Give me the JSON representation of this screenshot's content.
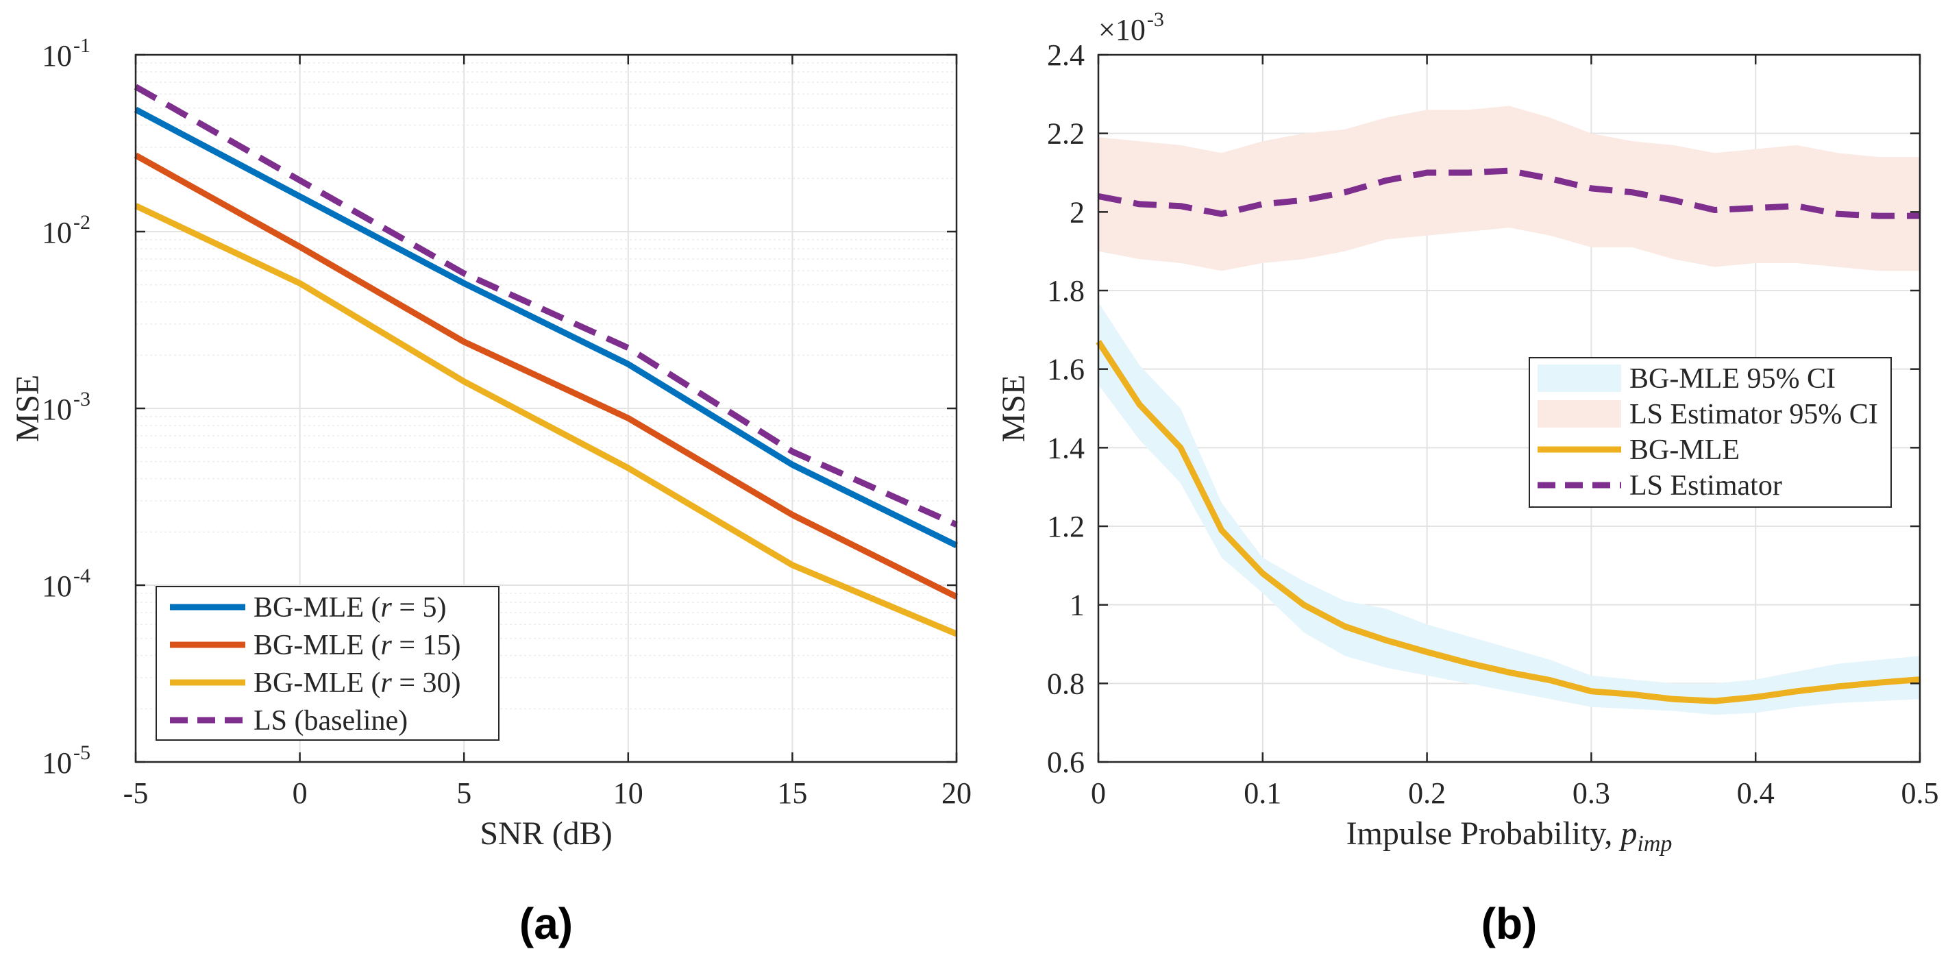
{
  "chart_data": [
    {
      "type": "line",
      "panel_label": "(a)",
      "xlabel": "SNR (dB)",
      "ylabel": "MSE",
      "x": [
        -5,
        0,
        5,
        10,
        15,
        20
      ],
      "xlim": [
        -5,
        20
      ],
      "xticks": [
        "-5",
        "0",
        "5",
        "10",
        "15",
        "20"
      ],
      "yscale": "log",
      "ylim": [
        1e-05,
        0.1
      ],
      "yticks": [
        {
          "base": "10",
          "exp": "-5"
        },
        {
          "base": "10",
          "exp": "-4"
        },
        {
          "base": "10",
          "exp": "-3"
        },
        {
          "base": "10",
          "exp": "-2"
        },
        {
          "base": "10",
          "exp": "-1"
        }
      ],
      "grid": true,
      "legend_position": "bottom-left",
      "series": [
        {
          "name": "BG-MLE (r = 5)",
          "label_prefix": "BG-MLE (",
          "label_var": "r",
          "label_suffix": " = 5)",
          "color": "#0072BD",
          "dash": "solid",
          "values": [
            0.049,
            0.0158,
            0.0051,
            0.00178,
            0.00048,
            0.000168
          ]
        },
        {
          "name": "BG-MLE (r = 15)",
          "label_prefix": "BG-MLE (",
          "label_var": "r",
          "label_suffix": " = 15)",
          "color": "#D95319",
          "dash": "solid",
          "values": [
            0.027,
            0.0082,
            0.00238,
            0.00088,
            0.00025,
            8.6e-05
          ]
        },
        {
          "name": "BG-MLE (r = 30)",
          "label_prefix": "BG-MLE (",
          "label_var": "r",
          "label_suffix": " = 30)",
          "color": "#EDB120",
          "dash": "solid",
          "values": [
            0.014,
            0.0051,
            0.00142,
            0.00046,
            0.00013,
            5.3e-05
          ]
        },
        {
          "name": "LS (baseline)",
          "label_prefix": "LS (baseline)",
          "label_var": "",
          "label_suffix": "",
          "color": "#7E2F8E",
          "dash": "dashed",
          "values": [
            0.066,
            0.0195,
            0.0058,
            0.0022,
            0.00057,
            0.00022
          ]
        }
      ]
    },
    {
      "type": "line",
      "panel_label": "(b)",
      "xlabel_prefix": "Impulse Probability, ",
      "xlabel_var": "p",
      "xlabel_sub": "imp",
      "ylabel": "MSE",
      "y_multiplier": "×10",
      "y_multiplier_exp": "-3",
      "x": [
        0,
        0.025,
        0.05,
        0.075,
        0.1,
        0.125,
        0.15,
        0.175,
        0.2,
        0.225,
        0.25,
        0.275,
        0.3,
        0.325,
        0.35,
        0.375,
        0.4,
        0.425,
        0.45,
        0.475,
        0.5
      ],
      "xlim": [
        0,
        0.5
      ],
      "xticks": [
        "0",
        "0.1",
        "0.2",
        "0.3",
        "0.4",
        "0.5"
      ],
      "ylim": [
        0.6,
        2.4
      ],
      "yticks": [
        "0.6",
        "0.8",
        "1",
        "1.2",
        "1.4",
        "1.6",
        "1.8",
        "2",
        "2.2",
        "2.4"
      ],
      "grid": true,
      "legend_position": "right-middle",
      "bands": [
        {
          "name": "BG-MLE 95% CI",
          "color": "#e5f5fc",
          "lower": [
            1.56,
            1.42,
            1.31,
            1.12,
            1.03,
            0.93,
            0.87,
            0.84,
            0.82,
            0.8,
            0.78,
            0.76,
            0.74,
            0.735,
            0.73,
            0.72,
            0.725,
            0.74,
            0.75,
            0.755,
            0.76
          ],
          "upper": [
            1.77,
            1.61,
            1.5,
            1.26,
            1.12,
            1.06,
            1.01,
            0.99,
            0.95,
            0.92,
            0.89,
            0.86,
            0.82,
            0.81,
            0.8,
            0.8,
            0.81,
            0.83,
            0.85,
            0.86,
            0.87
          ]
        },
        {
          "name": "LS Estimator 95% CI",
          "color": "#fbe9e4",
          "lower": [
            1.9,
            1.88,
            1.87,
            1.85,
            1.87,
            1.88,
            1.9,
            1.93,
            1.94,
            1.95,
            1.96,
            1.94,
            1.91,
            1.91,
            1.88,
            1.86,
            1.87,
            1.87,
            1.86,
            1.85,
            1.85
          ],
          "upper": [
            2.19,
            2.18,
            2.17,
            2.15,
            2.18,
            2.2,
            2.21,
            2.24,
            2.26,
            2.26,
            2.27,
            2.24,
            2.2,
            2.18,
            2.17,
            2.15,
            2.16,
            2.17,
            2.15,
            2.14,
            2.14
          ]
        }
      ],
      "series": [
        {
          "name": "BG-MLE",
          "color": "#EDB120",
          "dash": "solid",
          "values": [
            1.67,
            1.51,
            1.4,
            1.19,
            1.08,
            1.0,
            0.945,
            0.91,
            0.88,
            0.852,
            0.828,
            0.808,
            0.78,
            0.772,
            0.76,
            0.755,
            0.765,
            0.78,
            0.792,
            0.802,
            0.81
          ]
        },
        {
          "name": "LS Estimator",
          "color": "#7E2F8E",
          "dash": "dashed",
          "values": [
            2.04,
            2.02,
            2.015,
            1.995,
            2.02,
            2.03,
            2.05,
            2.08,
            2.1,
            2.1,
            2.105,
            2.085,
            2.06,
            2.05,
            2.03,
            2.005,
            2.01,
            2.015,
            1.995,
            1.99,
            1.99
          ]
        }
      ]
    }
  ]
}
